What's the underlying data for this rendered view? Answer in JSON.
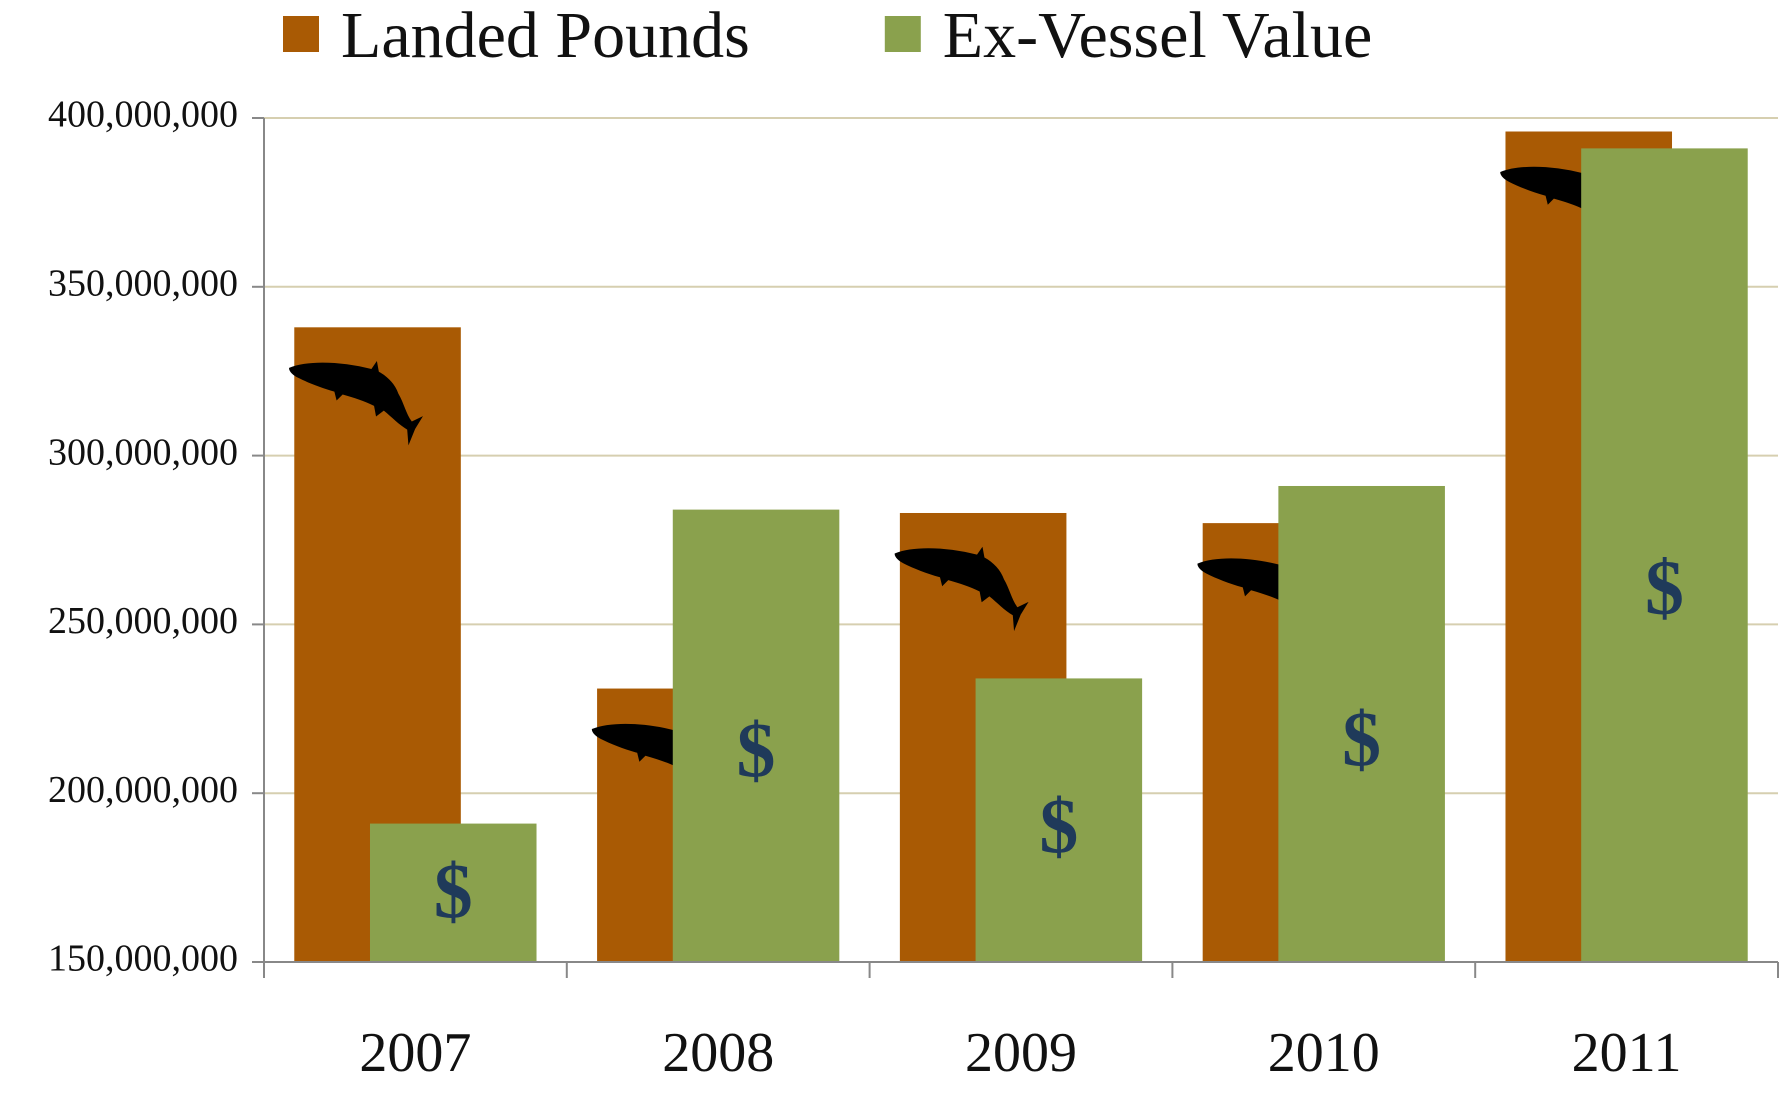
{
  "chart_data": {
    "type": "bar",
    "categories": [
      "2007",
      "2008",
      "2009",
      "2010",
      "2011"
    ],
    "series": [
      {
        "name": "Landed Pounds",
        "color": "#a95a04",
        "values": [
          338000000,
          231000000,
          283000000,
          280000000,
          396000000
        ]
      },
      {
        "name": "Ex-Vessel Value",
        "color": "#8aa14d",
        "values": [
          191000000,
          284000000,
          234000000,
          291000000,
          391000000
        ]
      }
    ],
    "value_symbol": "$",
    "ylim": [
      150000000,
      400000000
    ],
    "yticks": [
      {
        "value": 150000000,
        "label": "150,000,000"
      },
      {
        "value": 200000000,
        "label": "200,000,000"
      },
      {
        "value": 250000000,
        "label": "250,000,000"
      },
      {
        "value": 300000000,
        "label": "300,000,000"
      },
      {
        "value": 350000000,
        "label": "350,000,000"
      },
      {
        "value": 400000000,
        "label": "400,000,000"
      }
    ],
    "grid": true,
    "legend": "top"
  }
}
